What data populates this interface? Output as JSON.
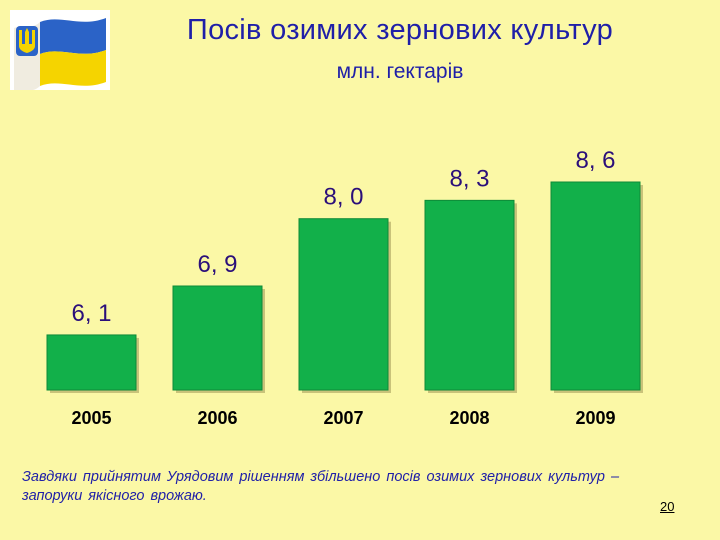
{
  "header": {
    "title": "Посів озимих зернових культур",
    "subtitle": "млн. гектарів"
  },
  "chart_data": {
    "type": "bar",
    "title": "Посів озимих зернових культур",
    "subtitle": "млн. гектарів",
    "categories": [
      "2005",
      "2006",
      "2007",
      "2008",
      "2009"
    ],
    "values": [
      6.1,
      6.9,
      8.0,
      8.3,
      8.6
    ],
    "data_labels": [
      "6, 1",
      "6, 9",
      "8, 0",
      "8, 3",
      "8, 6"
    ],
    "xlabel": "",
    "ylabel": "",
    "grid": false,
    "legend": false,
    "colors": {
      "bar": "#12b04a",
      "bar_edge": "#0d8a38",
      "data_label": "#2b0f7a",
      "category_label": "#000000"
    }
  },
  "footer": {
    "caption": "Завдяки прийнятим Урядовим рішенням збільшено посів озимих зернових культур – запоруки якісного врожаю.",
    "page_number": "20"
  },
  "logo": {
    "icon": "ukraine-flag-trident-icon",
    "colors": {
      "blue": "#2b63c7",
      "yellow": "#f5d400"
    }
  }
}
